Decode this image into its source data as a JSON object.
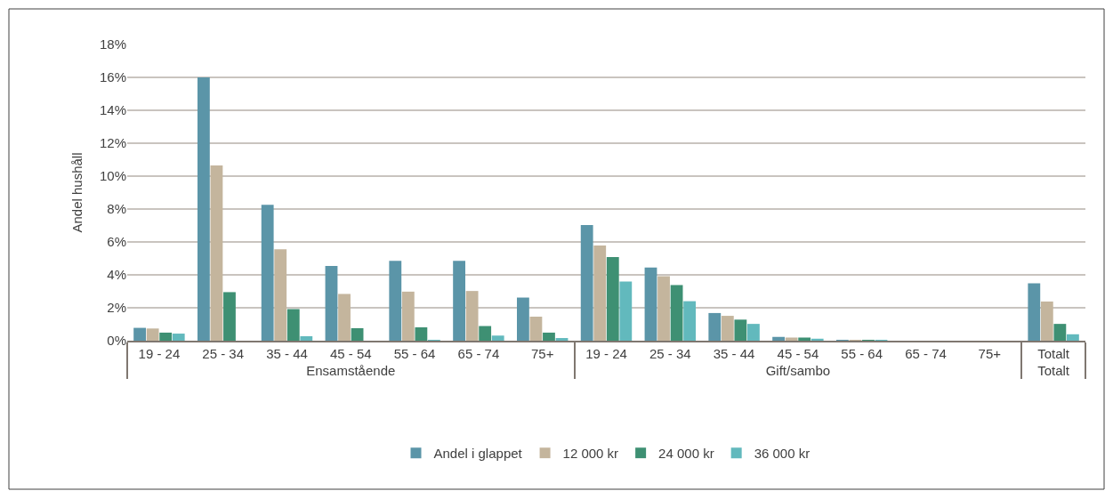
{
  "chart_data": {
    "type": "bar",
    "ylabel": "Andel hushåll",
    "categories": [
      "19 - 24",
      "25 - 34",
      "35 - 44",
      "45 - 54",
      "55 - 64",
      "65 - 74",
      "75+",
      "19 - 24",
      "25 - 34",
      "35 - 44",
      "45 - 54",
      "55 - 64",
      "65 - 74",
      "75+",
      "Totalt"
    ],
    "annotations": [
      "Ensamstående",
      "Gift/sambo",
      "Totalt"
    ],
    "series": [
      {
        "name": "Andel i glappet",
        "color": "#5b95a8",
        "values": [
          0.78,
          16.0,
          8.26,
          4.54,
          4.85,
          4.85,
          2.62,
          7.03,
          4.44,
          1.68,
          0.23,
          0.04,
          0,
          0,
          3.48
        ]
      },
      {
        "name": "12 000 kr",
        "color": "#c4b59d",
        "values": [
          0.74,
          10.65,
          5.55,
          2.84,
          2.98,
          3.02,
          1.46,
          5.78,
          3.92,
          1.51,
          0.19,
          0.04,
          0,
          0,
          2.38
        ]
      },
      {
        "name": "24 000 kr",
        "color": "#3e9073",
        "values": [
          0.49,
          2.95,
          1.92,
          0.76,
          0.81,
          0.89,
          0.49,
          5.08,
          3.38,
          1.28,
          0.19,
          0.04,
          0,
          0,
          1.02
        ]
      },
      {
        "name": "36 000 kr",
        "color": "#62b9bd",
        "values": [
          0.43,
          0,
          0.27,
          0,
          0.05,
          0.31,
          0.16,
          3.59,
          2.4,
          1.02,
          0.12,
          0.02,
          0,
          0,
          0.39
        ]
      }
    ],
    "ylim": [
      0,
      18
    ],
    "yticks": [
      {
        "value": 0,
        "label": "0%"
      },
      {
        "value": 2,
        "label": "2%"
      },
      {
        "value": 4,
        "label": "4%"
      },
      {
        "value": 6,
        "label": "6%"
      },
      {
        "value": 8,
        "label": "8%"
      },
      {
        "value": 10,
        "label": "10%"
      },
      {
        "value": 12,
        "label": "12%"
      },
      {
        "value": 14,
        "label": "14%"
      },
      {
        "value": 16,
        "label": "16%"
      },
      {
        "value": 18,
        "label": "18%"
      }
    ],
    "grid": "y",
    "legend": "bottom"
  }
}
